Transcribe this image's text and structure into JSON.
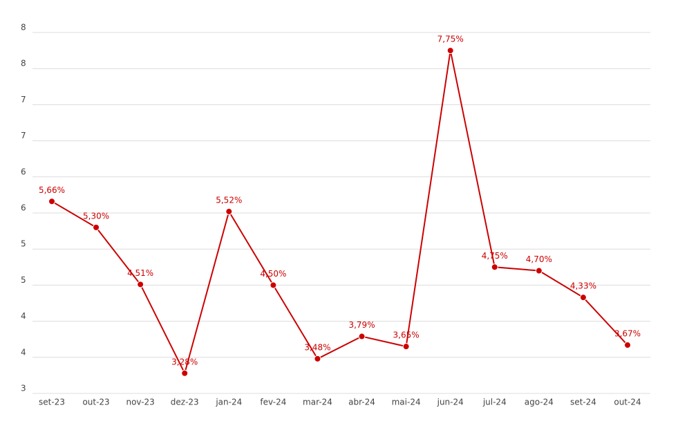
{
  "chart_data": {
    "type": "line",
    "categories": [
      "set-23",
      "out-23",
      "nov-23",
      "dez-23",
      "jan-24",
      "fev-24",
      "mar-24",
      "abr-24",
      "mai-24",
      "jun-24",
      "jul-24",
      "ago-24",
      "set-24",
      "out-24"
    ],
    "values": [
      5.66,
      5.3,
      4.51,
      3.28,
      5.52,
      4.5,
      3.48,
      3.79,
      3.65,
      7.75,
      4.75,
      4.7,
      4.33,
      3.67
    ],
    "value_labels": [
      "5,66%",
      "5,30%",
      "4,51%",
      "3,28%",
      "5,52%",
      "4,50%",
      "3,48%",
      "3,79%",
      "3,65%",
      "7,75%",
      "4,75%",
      "4,70%",
      "4,33%",
      "3,67%"
    ],
    "color": "#cc0000",
    "ylim": [
      3,
      8
    ],
    "yticks": [
      3,
      {
        "value": 3.5,
        "label": "4"
      },
      4,
      {
        "value": 4.5,
        "label": "5"
      },
      5,
      {
        "value": 5.5,
        "label": "6"
      },
      6,
      {
        "value": 6.5,
        "label": "7"
      },
      7,
      {
        "value": 7.5,
        "label": "8"
      },
      8
    ],
    "grid": true
  }
}
